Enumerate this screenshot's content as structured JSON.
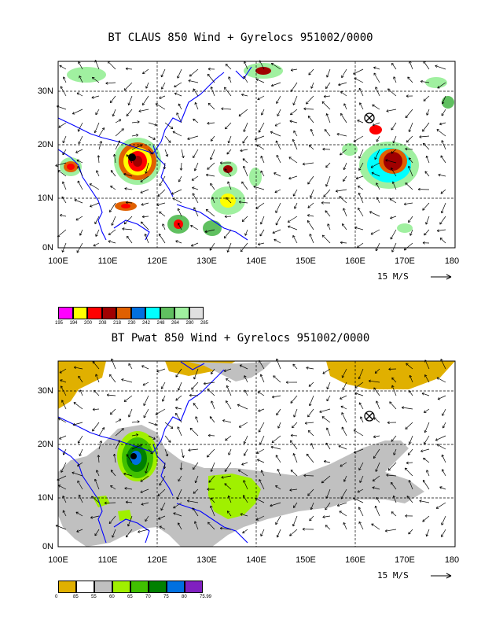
{
  "panels": [
    {
      "title": "BT CLAUS 850 Wind + Gyrelocs 951002/0000",
      "y_labels": [
        "30N",
        "20N",
        "10N",
        "0N"
      ],
      "x_labels": [
        "100E",
        "110E",
        "120E",
        "130E",
        "140E",
        "150E",
        "160E",
        "170E",
        "180"
      ],
      "scale_label": "15 M/S",
      "colorbar_colors": [
        "#ff00ff",
        "#ffff00",
        "#ff0000",
        "#a00000",
        "#e06000",
        "#0070e0",
        "#00ffff",
        "#60c060",
        "#a0f0a0",
        "#e0e0e0"
      ],
      "colorbar_labels": [
        "195",
        "194",
        "200",
        "208",
        "218",
        "230",
        "242",
        "248",
        "264",
        "280",
        "285"
      ]
    },
    {
      "title": "BT Pwat 850 Wind + Gyrelocs 951002/0000",
      "y_labels": [
        "30N",
        "20N",
        "10N",
        "0N"
      ],
      "x_labels": [
        "100E",
        "110E",
        "120E",
        "130E",
        "140E",
        "150E",
        "160E",
        "170E",
        "180"
      ],
      "scale_label": "15 M/S",
      "colorbar_colors": [
        "#e0b000",
        "#ffffff",
        "#c0c0c0",
        "#a0f000",
        "#40c000",
        "#008000",
        "#0070e0",
        "#8020c0"
      ],
      "colorbar_labels": [
        "0",
        "85",
        "55",
        "60",
        "65",
        "70",
        "75",
        "80",
        "75.99"
      ]
    }
  ]
}
